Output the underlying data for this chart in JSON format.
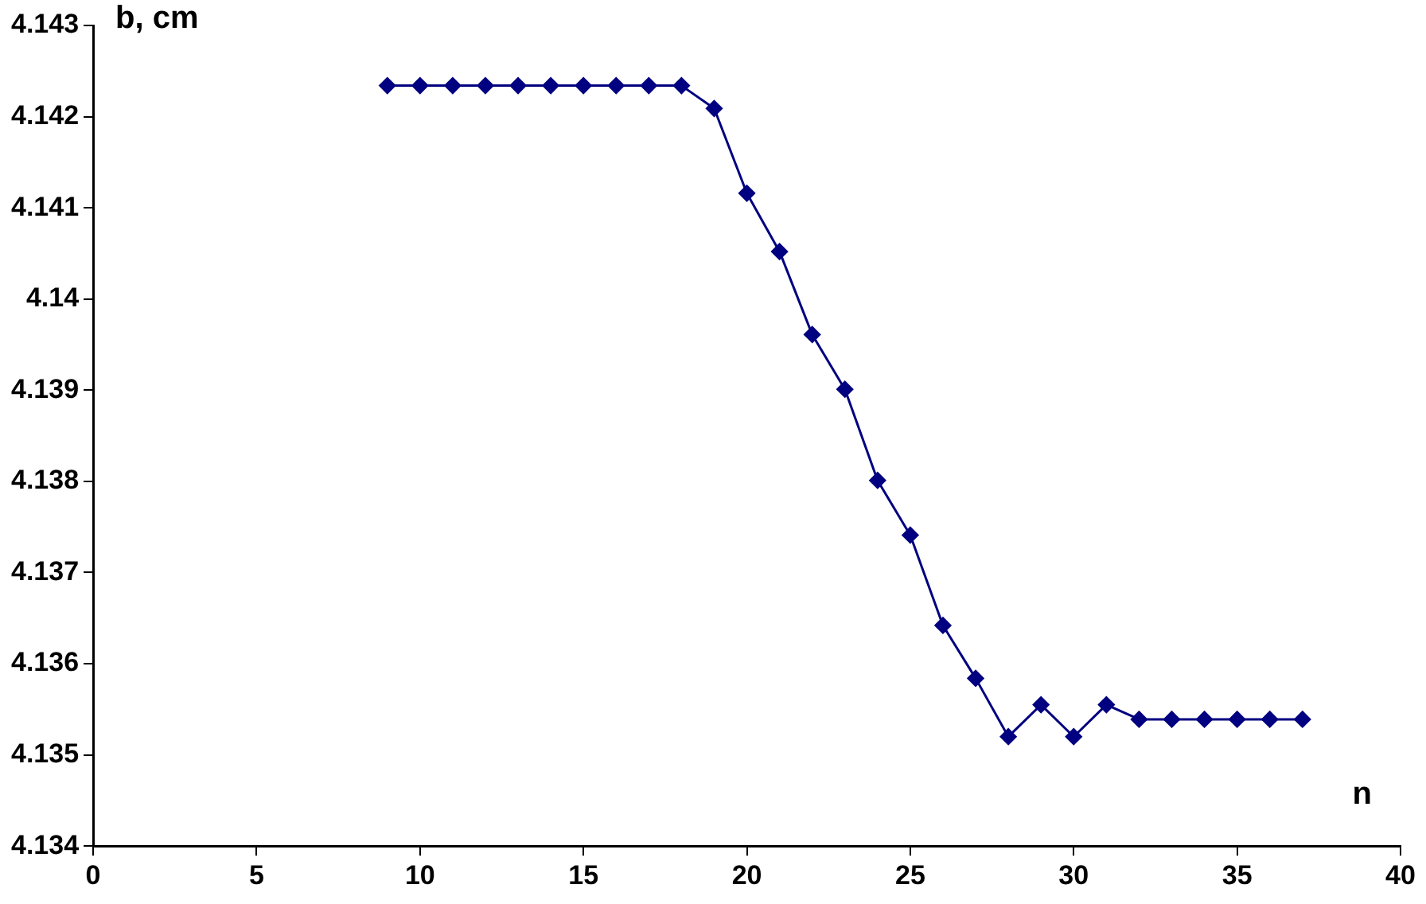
{
  "chart_data": {
    "type": "line",
    "xlabel": "n",
    "ylabel": "b, cm",
    "x": [
      9,
      10,
      11,
      12,
      13,
      14,
      15,
      16,
      17,
      18,
      19,
      20,
      21,
      22,
      23,
      24,
      25,
      26,
      27,
      28,
      29,
      30,
      31,
      32,
      33,
      34,
      35,
      36,
      37
    ],
    "series": [
      {
        "color": "#000080",
        "values": [
          4.14234,
          4.14234,
          4.14234,
          4.14234,
          4.14234,
          4.14234,
          4.14234,
          4.14234,
          4.14234,
          4.14234,
          4.14209,
          4.14116,
          4.14052,
          4.13961,
          4.13901,
          4.13801,
          4.13741,
          4.13642,
          4.13584,
          4.1352,
          4.13555,
          4.1352,
          4.13555,
          4.13539,
          4.13539,
          4.13539,
          4.13539,
          4.13539,
          4.13539
        ]
      }
    ],
    "xlim": [
      0,
      40
    ],
    "xticks": [
      0,
      5,
      10,
      15,
      20,
      25,
      30,
      35,
      40
    ],
    "ylim": [
      4.134,
      4.143
    ],
    "yticks": [
      4.134,
      4.135,
      4.136,
      4.137,
      4.138,
      4.139,
      4.14,
      4.141,
      4.142,
      4.143
    ],
    "grid": false,
    "legend": false,
    "marker": "diamond",
    "line_style": "solid"
  }
}
